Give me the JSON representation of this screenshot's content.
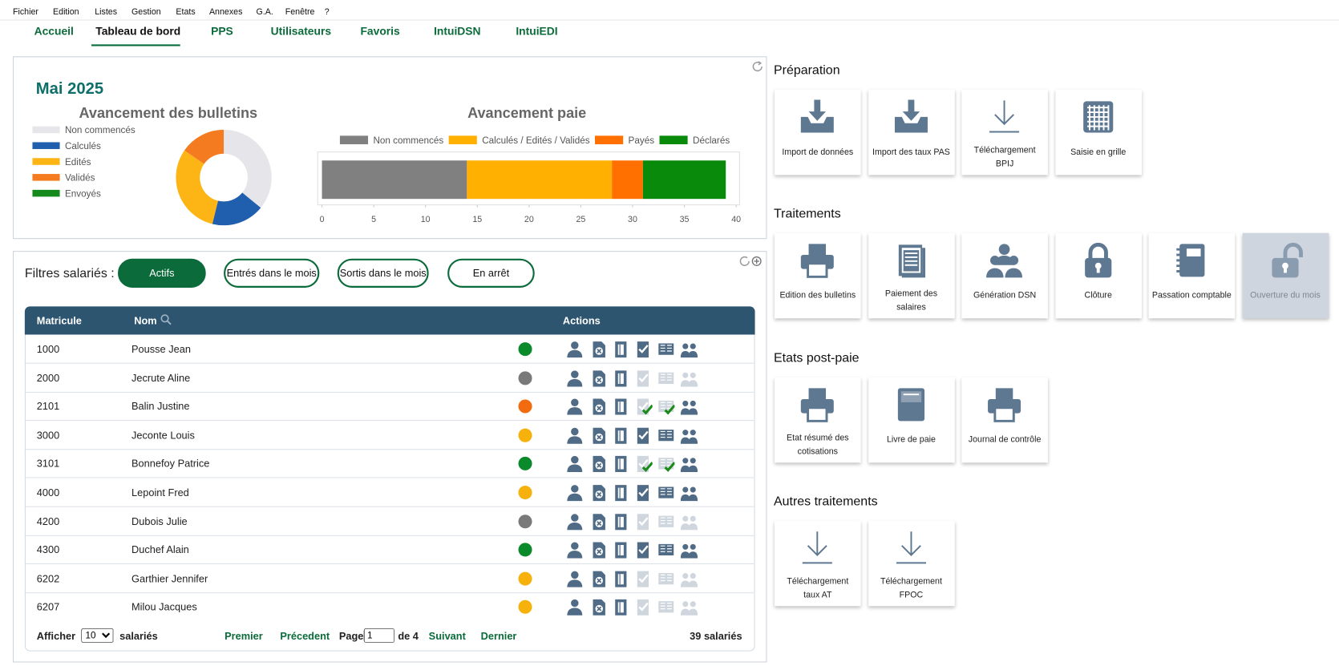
{
  "menu": [
    "Fichier",
    "Edition",
    "Listes",
    "Gestion",
    "Etats",
    "Annexes",
    "G.A.",
    "Fenêtre",
    "?"
  ],
  "tabs": {
    "items": [
      "Accueil",
      "Tableau de bord",
      "PPS",
      "Utilisateurs",
      "Favoris",
      "IntuiDSN",
      "IntuiEDI"
    ],
    "active": 1
  },
  "dashboard": {
    "title": "Mai 2025"
  },
  "chart_data": [
    {
      "type": "pie",
      "title": "Avancement des bulletins",
      "categories": [
        "Non commencés",
        "Calculés",
        "Edités",
        "Validés",
        "Envoyés"
      ],
      "values": [
        14,
        7,
        12,
        6,
        0
      ],
      "colors": [
        "#e6e6ea",
        "#1f5fad",
        "#fdb515",
        "#f47b20",
        "#148a1c"
      ]
    },
    {
      "type": "bar",
      "orientation": "horizontal",
      "stacked": true,
      "title": "Avancement paie",
      "categories": [
        null
      ],
      "series": [
        {
          "name": "Non commencés",
          "color": "#808080",
          "values": [
            14
          ]
        },
        {
          "name": "Calculés / Edités / Validés",
          "color": "#ffb000",
          "values": [
            14
          ]
        },
        {
          "name": "Payés",
          "color": "#ff7000",
          "values": [
            3
          ]
        },
        {
          "name": "Déclarés",
          "color": "#0a8a0a",
          "values": [
            8
          ]
        }
      ],
      "xlim": [
        0,
        40
      ],
      "xticks": [
        0,
        5,
        10,
        15,
        20,
        25,
        30,
        35,
        40
      ]
    }
  ],
  "filters": {
    "label": "Filtres salariés :",
    "buttons": [
      "Actifs",
      "Entrés dans le mois",
      "Sortis dans le mois",
      "En arrêt"
    ],
    "active": 0
  },
  "table": {
    "headers": [
      "Matricule",
      "Nom",
      "Actions"
    ],
    "rows": [
      {
        "matricule": "1000",
        "nom": "Pousse Jean",
        "status": "#0a8a2a",
        "actions": "full"
      },
      {
        "matricule": "2000",
        "nom": "Jecrute Aline",
        "status": "#7a7a7a",
        "actions": "partial"
      },
      {
        "matricule": "2101",
        "nom": "Balin Justine",
        "status": "#f26b0f",
        "actions": "checked"
      },
      {
        "matricule": "3000",
        "nom": "Jeconte Louis",
        "status": "#f7b10c",
        "actions": "full"
      },
      {
        "matricule": "3101",
        "nom": "Bonnefoy Patrice",
        "status": "#0a8a2a",
        "actions": "checked"
      },
      {
        "matricule": "4000",
        "nom": "Lepoint Fred",
        "status": "#f7b10c",
        "actions": "full"
      },
      {
        "matricule": "4200",
        "nom": "Dubois Julie",
        "status": "#7a7a7a",
        "actions": "partial"
      },
      {
        "matricule": "4300",
        "nom": "Duchef Alain",
        "status": "#0a8a2a",
        "actions": "full"
      },
      {
        "matricule": "6202",
        "nom": "Garthier Jennifer",
        "status": "#f7b10c",
        "actions": "partial"
      },
      {
        "matricule": "6207",
        "nom": "Milou Jacques",
        "status": "#f7b10c",
        "actions": "partial"
      }
    ]
  },
  "pagination": {
    "show_label": "Afficher",
    "page_size": "10",
    "unit": "salariés",
    "first": "Premier",
    "previous": "Précedent",
    "page_label": "Page",
    "page": "1",
    "of": "de 4",
    "next": "Suivant",
    "last": "Dernier",
    "total": "39 salariés"
  },
  "sections": [
    {
      "title": "Préparation",
      "tiles": [
        {
          "label": "Import de données"
        },
        {
          "label": "Import des taux PAS"
        },
        {
          "label": "Téléchargement BPIJ"
        },
        {
          "label": "Saisie en grille"
        }
      ]
    },
    {
      "title": "Traitements",
      "tiles": [
        {
          "label": "Edition des bulletins"
        },
        {
          "label": "Paiement des salaires"
        },
        {
          "label": "Génération DSN"
        },
        {
          "label": "Clôture"
        },
        {
          "label": "Passation comptable"
        },
        {
          "label": "Ouverture du mois",
          "disabled": true
        }
      ]
    },
    {
      "title": "Etats post-paie",
      "tiles": [
        {
          "label": "Etat résumé des cotisations"
        },
        {
          "label": "Livre de paie"
        },
        {
          "label": "Journal de contrôle"
        }
      ]
    },
    {
      "title": "Autres traitements",
      "tiles": [
        {
          "label": "Téléchargement taux AT"
        },
        {
          "label": "Téléchargement FPOC"
        }
      ]
    }
  ]
}
